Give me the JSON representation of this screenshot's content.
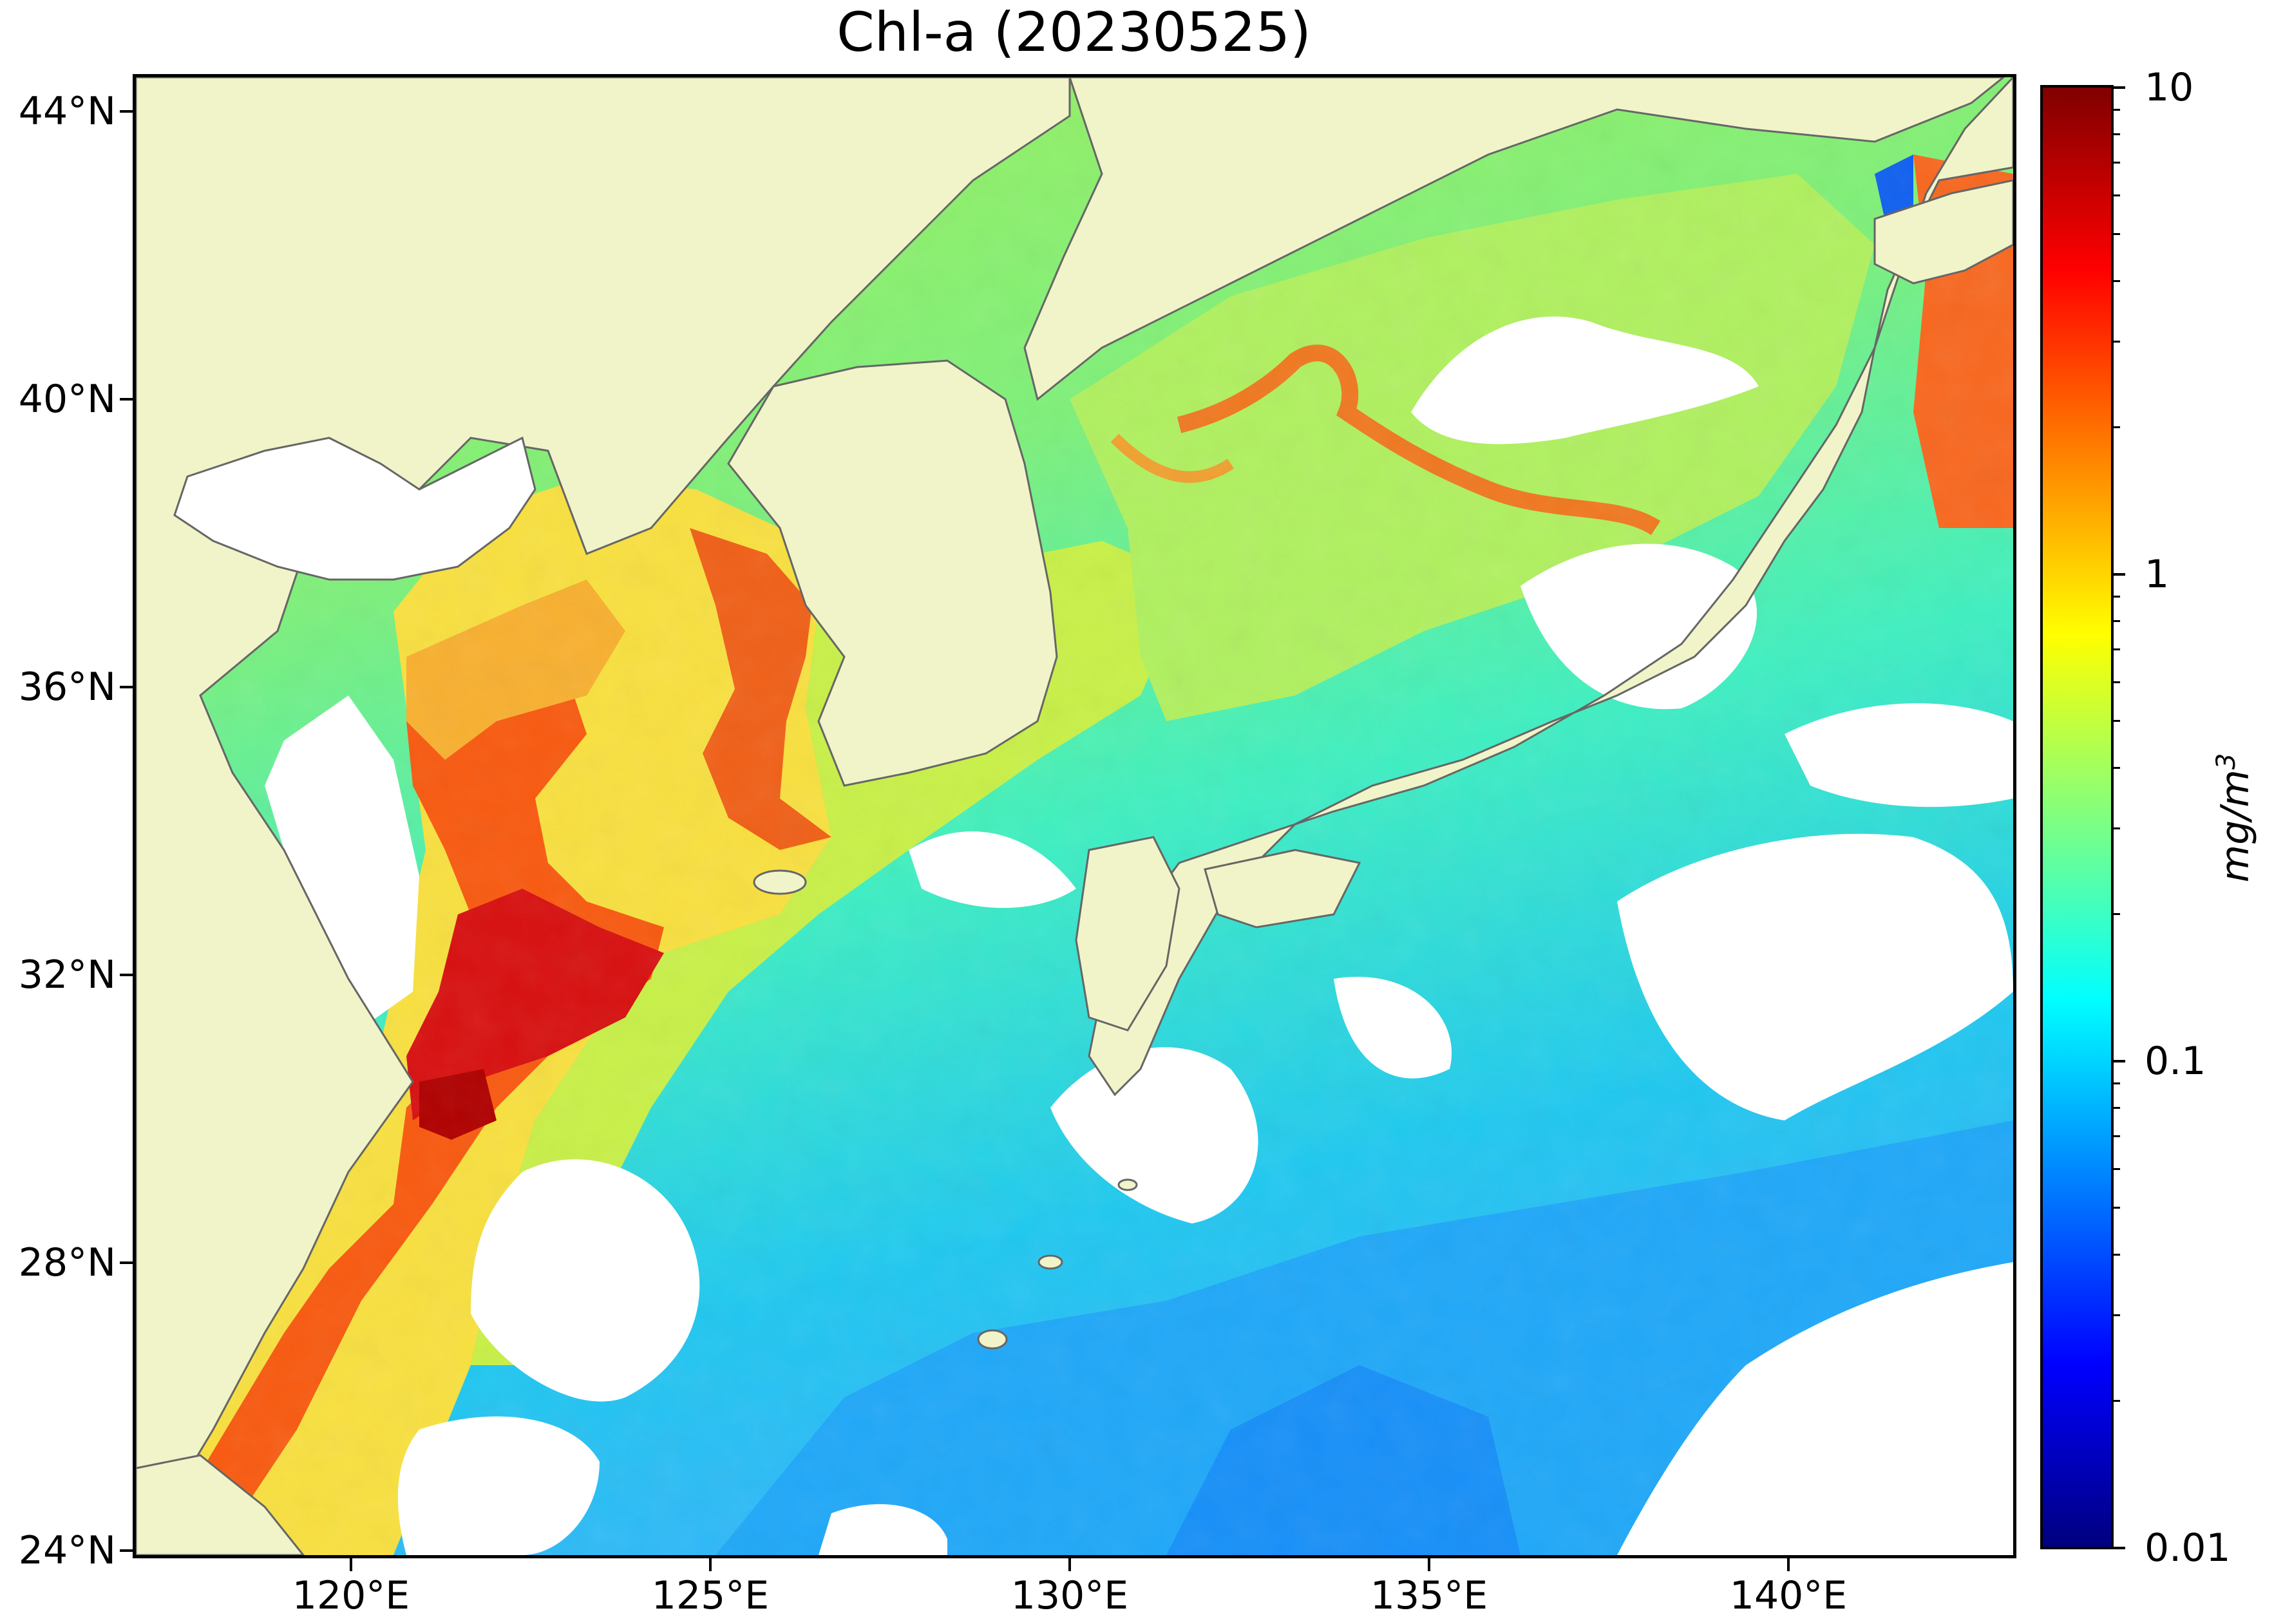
{
  "title": "Chl-a (20230525)",
  "map": {
    "latitude_labels": [
      "44°N",
      "40°N",
      "36°N",
      "32°N",
      "28°N",
      "24°N"
    ],
    "longitude_labels": [
      "120°E",
      "125°E",
      "130°E",
      "135°E",
      "140°E"
    ],
    "land_color": "#f0f4c8",
    "no_data_color": "#ffffff",
    "coastline_color": "#666666"
  },
  "colorbar": {
    "scale": "log",
    "range": [
      0.01,
      10
    ],
    "colormap": "jet",
    "tick_labels": [
      "10",
      "1",
      "0.1",
      "0.01"
    ],
    "unit": "mg/m",
    "unit_exponent": "3",
    "colors": [
      "#800000",
      "#ff0000",
      "#ff8000",
      "#ffff00",
      "#80ff80",
      "#00ffff",
      "#0080ff",
      "#0000ff",
      "#000080"
    ]
  }
}
